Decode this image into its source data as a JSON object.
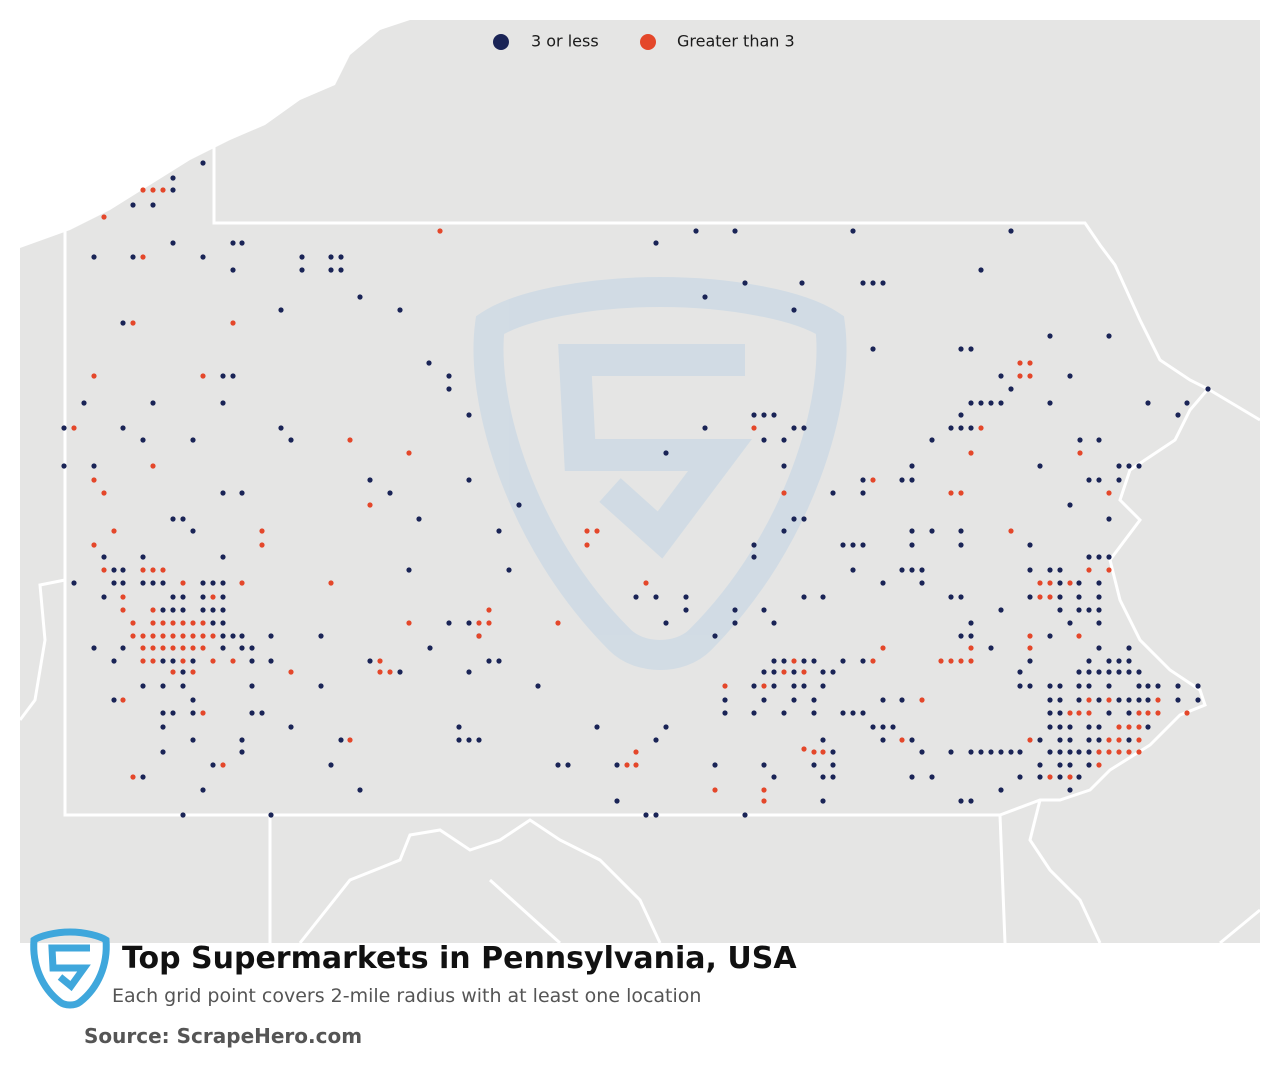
{
  "legend": {
    "items": [
      {
        "label": "3 or less",
        "color": "#1a2456"
      },
      {
        "label": "Greater than 3",
        "color": "#e4472a"
      }
    ]
  },
  "title": "Top Supermarkets in Pennsylvania, USA",
  "subtitle": "Each grid point covers 2-mile radius with at least one location",
  "source": "Source: ScrapeHero.com"
}
